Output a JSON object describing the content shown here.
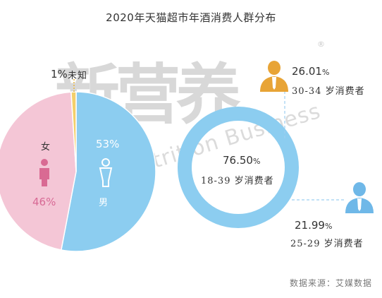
{
  "title": "2020年天猫超市年酒消费人群分布",
  "source": "数据来源：艾媒数据",
  "watermark": {
    "logo": "新营养",
    "text": "New Nutrition Business",
    "mark": "®"
  },
  "colors": {
    "female": "#f4c6d6",
    "male": "#8ccdf0",
    "unknown": "#f3cf6a",
    "ring": "#8ccdf0",
    "person": "#e8a436",
    "person_blue": "#6fb8e8"
  },
  "chart_data": [
    {
      "type": "pie",
      "slices": [
        {
          "label": "女",
          "value": 46,
          "display": "46%",
          "color": "#f4c6d6"
        },
        {
          "label": "男",
          "value": 53,
          "display": "53%",
          "color": "#8ccdf0"
        },
        {
          "label": "未知",
          "value": 1,
          "display": "1%",
          "color": "#f3cf6a"
        }
      ]
    },
    {
      "type": "donut",
      "center": {
        "value": "76.50",
        "unit": "%",
        "label": "18-39 岁消费者"
      },
      "callouts": [
        {
          "value": "26.01",
          "unit": "%",
          "label": "30-34 岁消费者",
          "icon": "person-orange-icon"
        },
        {
          "value": "21.99",
          "unit": "%",
          "label": "25-29 岁消费者",
          "icon": "person-blue-icon"
        }
      ]
    }
  ]
}
